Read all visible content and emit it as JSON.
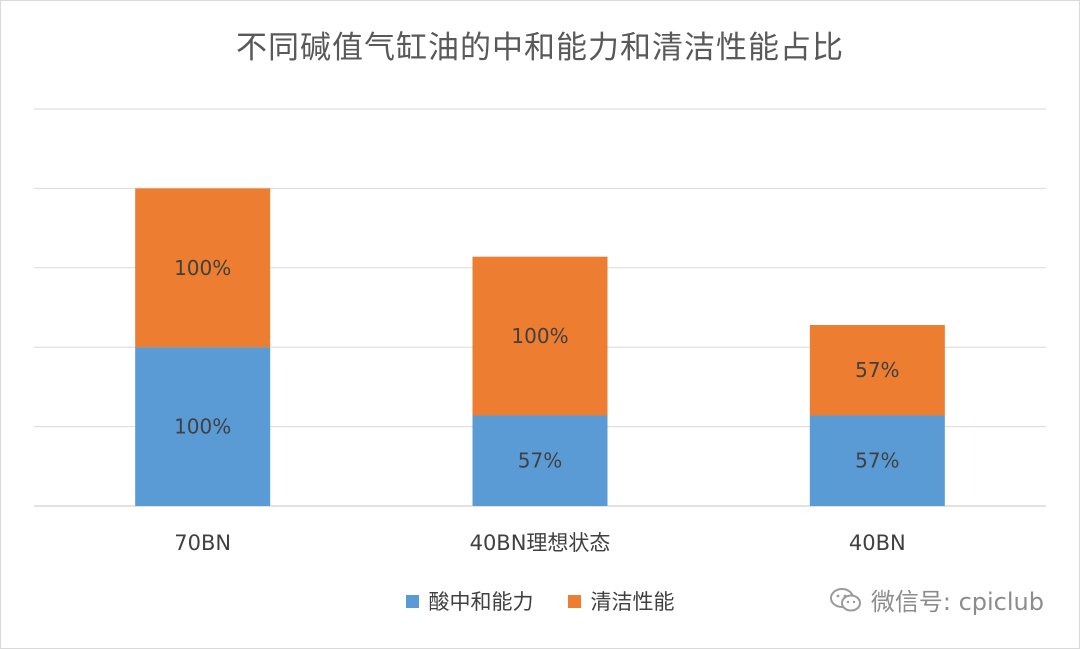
{
  "chart_data": {
    "type": "bar",
    "stacked": true,
    "title": "不同碱值气缸油的中和能力和清洁性能占比",
    "categories": [
      "70BN",
      "40BN理想状态",
      "40BN"
    ],
    "series": [
      {
        "name": "酸中和能力",
        "values": [
          100,
          57,
          57
        ],
        "labels": [
          "100%",
          "57%",
          "57%"
        ],
        "color": "#5b9bd5"
      },
      {
        "name": "清洁性能",
        "values": [
          100,
          100,
          57
        ],
        "labels": [
          "100%",
          "100%",
          "57%"
        ],
        "color": "#ed7d31"
      }
    ],
    "ylim": [
      0,
      250
    ],
    "grid": true,
    "legend": "bottom"
  },
  "watermark": {
    "text": "微信号: cpiclub",
    "icon": "wechat-icon"
  }
}
